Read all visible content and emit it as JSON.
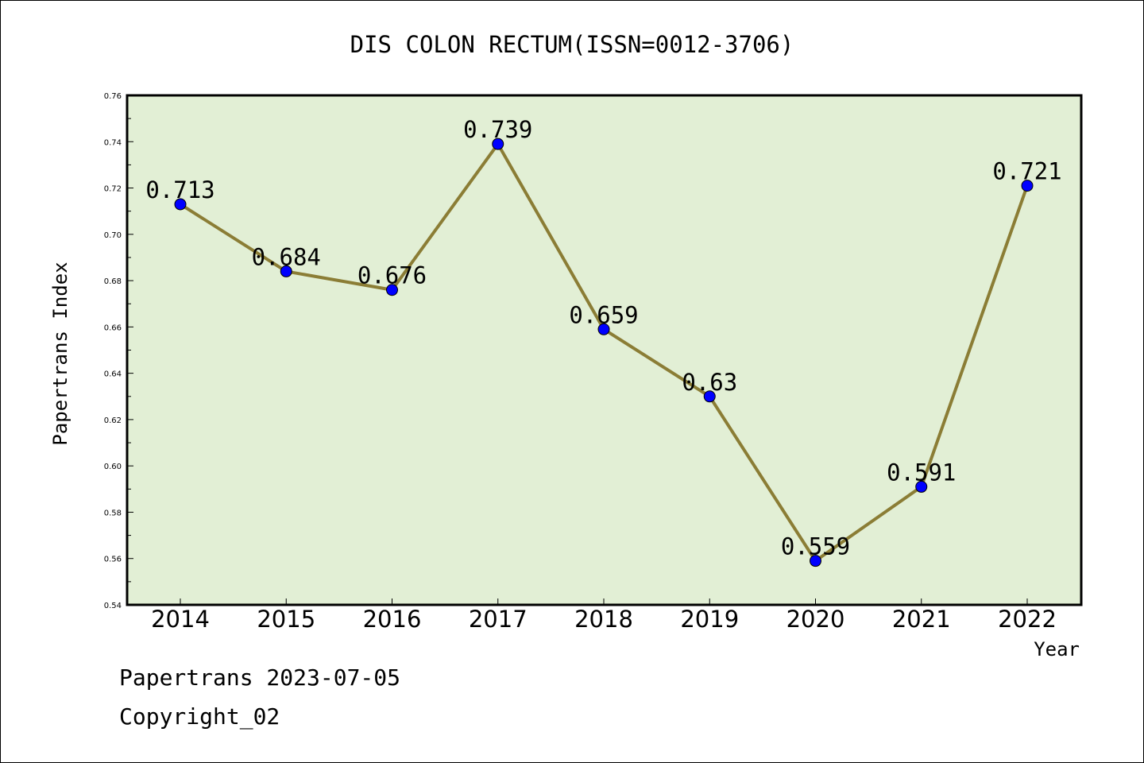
{
  "chart_data": {
    "type": "line",
    "title": "DIS COLON RECTUM(ISSN=0012-3706)",
    "xlabel": "Year",
    "ylabel": "Papertrans Index",
    "categories": [
      "2014",
      "2015",
      "2016",
      "2017",
      "2018",
      "2019",
      "2020",
      "2021",
      "2022"
    ],
    "values": [
      0.713,
      0.684,
      0.676,
      0.739,
      0.659,
      0.63,
      0.559,
      0.591,
      0.721
    ],
    "data_labels": [
      "0.713",
      "0.684",
      "0.676",
      "0.739",
      "0.659",
      "0.63",
      "0.559",
      "0.591",
      "0.721"
    ],
    "ylim": [
      0.54,
      0.76
    ],
    "yticks": [
      "0.54",
      "0.56",
      "0.58",
      "0.60",
      "0.62",
      "0.64",
      "0.66",
      "0.68",
      "0.70",
      "0.72",
      "0.74",
      "0.76"
    ],
    "grid": false,
    "colors": {
      "plot_background": "#e2efd5",
      "line": "#8b7d35",
      "marker": "#0000ff"
    }
  },
  "footer": {
    "line1": "Papertrans 2023-07-05",
    "line2": "Copyright_02"
  }
}
